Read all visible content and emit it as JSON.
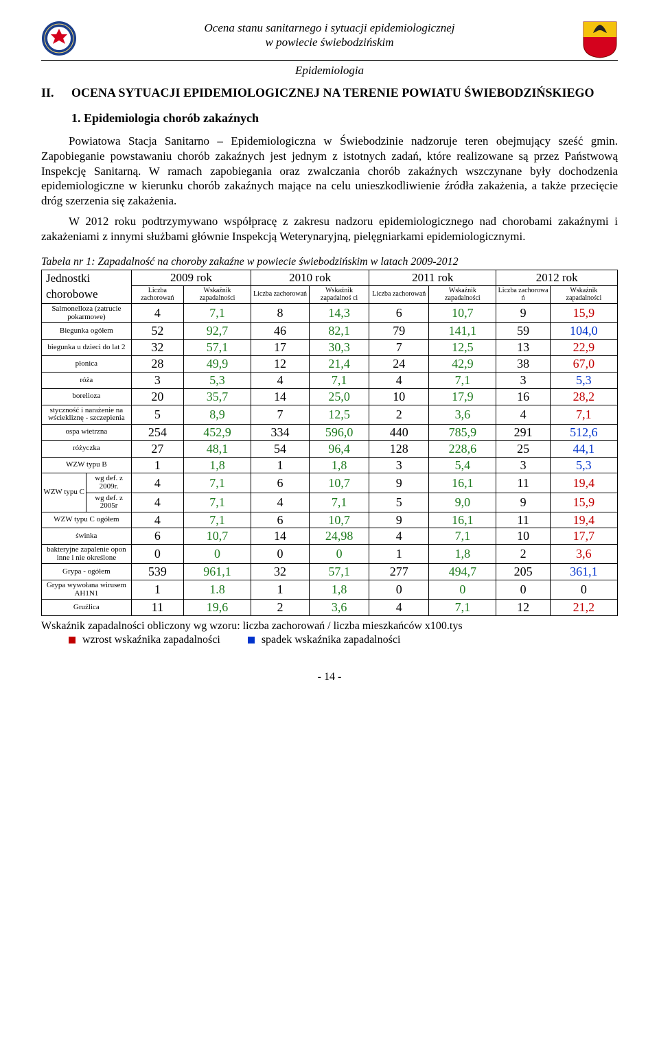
{
  "header": {
    "line1": "Ocena stanu sanitarnego i sytuacji epidemiologicznej",
    "line2": "w powiecie świebodzińskim",
    "epi": "Epidemiologia"
  },
  "section": {
    "roman": "II.",
    "title": "OCENA SYTUACJI  EPIDEMIOLOGICZNEJ NA TERENIE POWIATU ŚWIEBODZIŃSKIEGO",
    "sub_num": "1.",
    "sub_title": "Epidemiologia chorób zakaźnych"
  },
  "paragraphs": {
    "p1": "Powiatowa Stacja Sanitarno – Epidemiologiczna w Świebodzinie nadzoruje teren obejmujący sześć gmin. Zapobieganie powstawaniu chorób zakaźnych jest jednym z istotnych zadań, które realizowane są przez Państwową Inspekcję Sanitarną. W ramach zapobiegania oraz zwalczania chorób zakaźnych wszczynane były dochodzenia epidemiologiczne w kierunku chorób zakaźnych mające na celu unieszkodliwienie źródła zakażenia, a także przecięcie dróg szerzenia się zakażenia.",
    "p2": "W 2012 roku podtrzymywano współpracę z zakresu nadzoru epidemiologicznego nad chorobami zakaźnymi i zakażeniami z innymi służbami głównie Inspekcją Weterynaryjną, pielęgniarkami epidemiologicznymi."
  },
  "table": {
    "caption": "Tabela nr 1: Zapadalność na choroby zakaźne w powiecie świebodzińskim w latach 2009-2012",
    "row_label_hdr1": "Jednostki",
    "row_label_hdr2": "chorobowe",
    "years": [
      "2009 rok",
      "2010 rok",
      "2011 rok",
      "2012 rok"
    ],
    "sub_headers": {
      "liczba": "Liczba zachorowań",
      "liczba_short": "Liczba zachorowa ń",
      "wskaznik": "Wskaźnik zapadalności",
      "wskaznik_short": "Wskaźnik zapadalnoś ci"
    },
    "color_scheme": {
      "2009_wsk": "green",
      "2010_wsk": "green",
      "2011_wsk": "green",
      "2012_wsk_default": "red"
    },
    "rows": [
      {
        "label": "Salmonelloza (zatrucie pokarmowe)",
        "v": [
          "4",
          "7,1",
          "8",
          "14,3",
          "6",
          "10,7",
          "9",
          "15,9"
        ],
        "c12": "red"
      },
      {
        "label": "Biegunka ogółem",
        "v": [
          "52",
          "92,7",
          "46",
          "82,1",
          "79",
          "141,1",
          "59",
          "104,0"
        ],
        "c12": "blue"
      },
      {
        "label": "biegunka u dzieci do lat 2",
        "v": [
          "32",
          "57,1",
          "17",
          "30,3",
          "7",
          "12,5",
          "13",
          "22,9"
        ],
        "c12": "red"
      },
      {
        "label": "płonica",
        "v": [
          "28",
          "49,9",
          "12",
          "21,4",
          "24",
          "42,9",
          "38",
          "67,0"
        ],
        "c12": "red"
      },
      {
        "label": "róża",
        "v": [
          "3",
          "5,3",
          "4",
          "7,1",
          "4",
          "7,1",
          "3",
          "5,3"
        ],
        "c12": "blue"
      },
      {
        "label": "borelioza",
        "v": [
          "20",
          "35,7",
          "14",
          "25,0",
          "10",
          "17,9",
          "16",
          "28,2"
        ],
        "c12": "red"
      },
      {
        "label": "styczność i narażenie na wściekliznę - szczepienia",
        "v": [
          "5",
          "8,9",
          "7",
          "12,5",
          "2",
          "3,6",
          "4",
          "7,1"
        ],
        "c12": "red"
      },
      {
        "label": "ospa wietrzna",
        "v": [
          "254",
          "452,9",
          "334",
          "596,0",
          "440",
          "785,9",
          "291",
          "512,6"
        ],
        "c12": "blue"
      },
      {
        "label": "różyczka",
        "v": [
          "27",
          "48,1",
          "54",
          "96,4",
          "128",
          "228,6",
          "25",
          "44,1"
        ],
        "c12": "blue"
      },
      {
        "label": "WZW typu B",
        "v": [
          "1",
          "1,8",
          "1",
          "1,8",
          "3",
          "5,4",
          "3",
          "5,3"
        ],
        "c12": "blue"
      },
      {
        "label_group": "WZW typu  C",
        "sublabel": "wg def.  z 2009r.",
        "v": [
          "4",
          "7,1",
          "6",
          "10,7",
          "9",
          "16,1",
          "11",
          "19,4"
        ],
        "c12": "red"
      },
      {
        "sublabel": "wg def.  z 2005r",
        "v": [
          "4",
          "7,1",
          "4",
          "7,1",
          "5",
          "9,0",
          "9",
          "15,9"
        ],
        "c12": "red"
      },
      {
        "label": "WZW typu  C ogółem",
        "v": [
          "4",
          "7,1",
          "6",
          "10,7",
          "9",
          "16,1",
          "11",
          "19,4"
        ],
        "c12": "red"
      },
      {
        "label": "świnka",
        "v": [
          "6",
          "10,7",
          "14",
          "24,98",
          "4",
          "7,1",
          "10",
          "17,7"
        ],
        "c12": "red"
      },
      {
        "label": "bakteryjne zapalenie opon inne i nie określone",
        "v": [
          "0",
          "0",
          "0",
          "0",
          "1",
          "1,8",
          "2",
          "3,6"
        ],
        "c12": "red"
      },
      {
        "label": "Grypa - ogółem",
        "v": [
          "539",
          "961,1",
          "32",
          "57,1",
          "277",
          "494,7",
          "205",
          "361,1"
        ],
        "c12": "blue"
      },
      {
        "label": "Grypa wywołana wirusem AH1N1",
        "v": [
          "1",
          "1.8",
          "1",
          "1,8",
          "0",
          "0",
          "0",
          "0"
        ],
        "c12": "black"
      },
      {
        "label": "Gruźlica",
        "v": [
          "11",
          "19,6",
          "2",
          "3,6",
          "4",
          "7,1",
          "12",
          "21,2"
        ],
        "c12": "red"
      }
    ]
  },
  "footnote": "Wskaźnik zapadalności obliczony wg wzoru: liczba zachorowań / liczba mieszkańców x100.tys",
  "legend": {
    "up": "wzrost wskaźnika zapadalności",
    "down": "spadek wskaźnika zapadalności"
  },
  "page_number": "- 14 -",
  "badge_colors": {
    "left_ring": "#1b3f8a",
    "left_inner": "#ffffff",
    "left_accent": "#d4021d",
    "right_top": "#f4c20d",
    "right_bottom": "#d4021d",
    "right_eagle": "#222"
  }
}
